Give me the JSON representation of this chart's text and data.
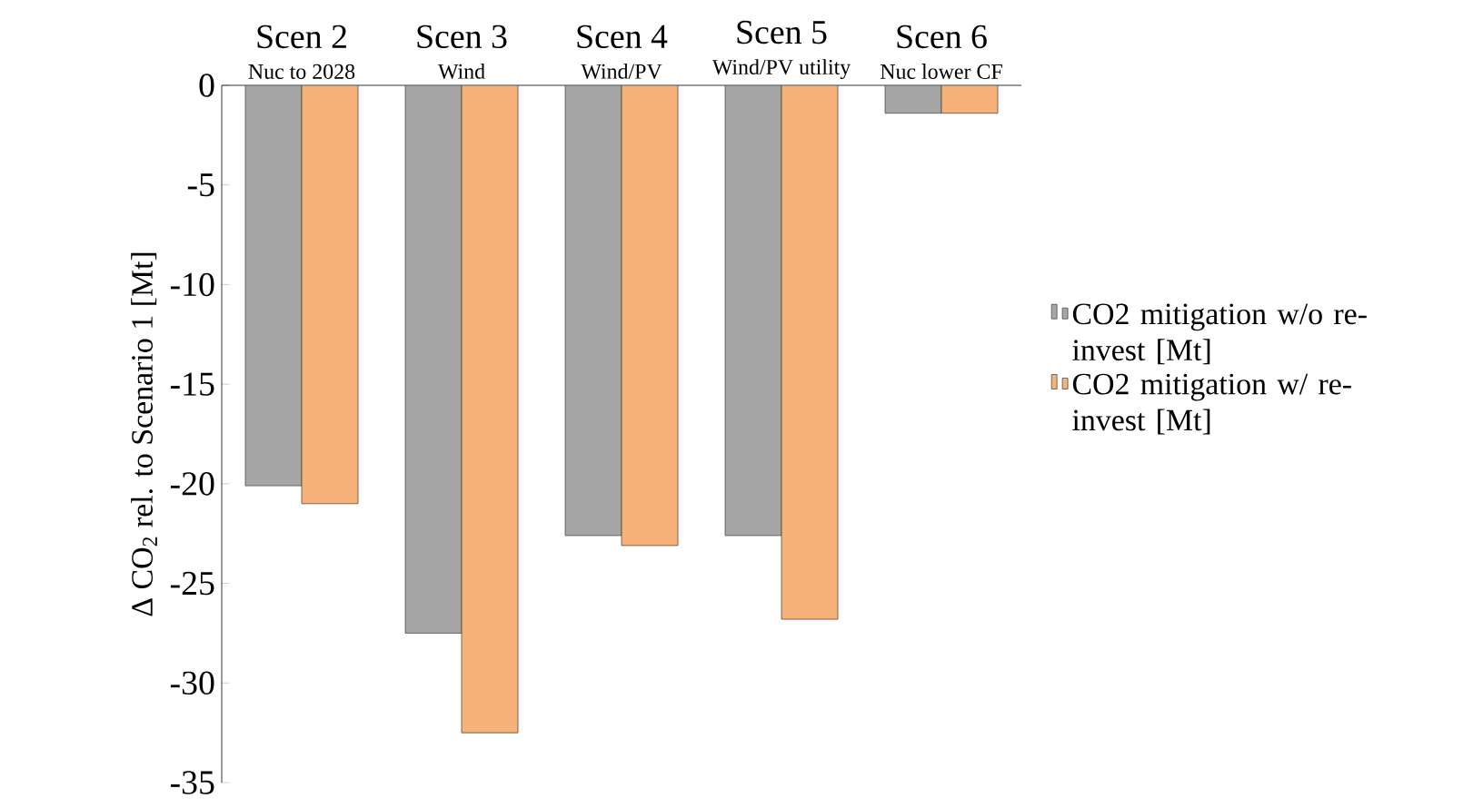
{
  "chart_data": {
    "type": "bar",
    "ylabel": "Δ CO$_{2}$ rel. to Scenario 1 [Mt]",
    "categories": [
      "Scen 2",
      "Scen 3",
      "Scen 4",
      "Scen 5",
      "Scen 6"
    ],
    "annotations": [
      "Nuc to 2028",
      "Wind",
      "Wind/PV",
      "Wind/PV utility",
      "Nuc lower CF"
    ],
    "series": [
      {
        "name": "CO2 mitigation w/o re-invest [Mt]",
        "color": "#a6a6a6",
        "values": [
          -20.1,
          -27.5,
          -22.6,
          -22.6,
          -1.4
        ]
      },
      {
        "name": "CO2 mitigation w/ re-invest [Mt]",
        "color": "#f7b27a",
        "values": [
          -21.0,
          -32.5,
          -23.1,
          -26.8,
          -1.4
        ]
      }
    ],
    "ylim": [
      -35,
      0
    ],
    "yticks": [
      -35,
      -30,
      -25,
      -20,
      -15,
      -10,
      -5,
      0
    ],
    "grid": false,
    "legend": "right"
  }
}
